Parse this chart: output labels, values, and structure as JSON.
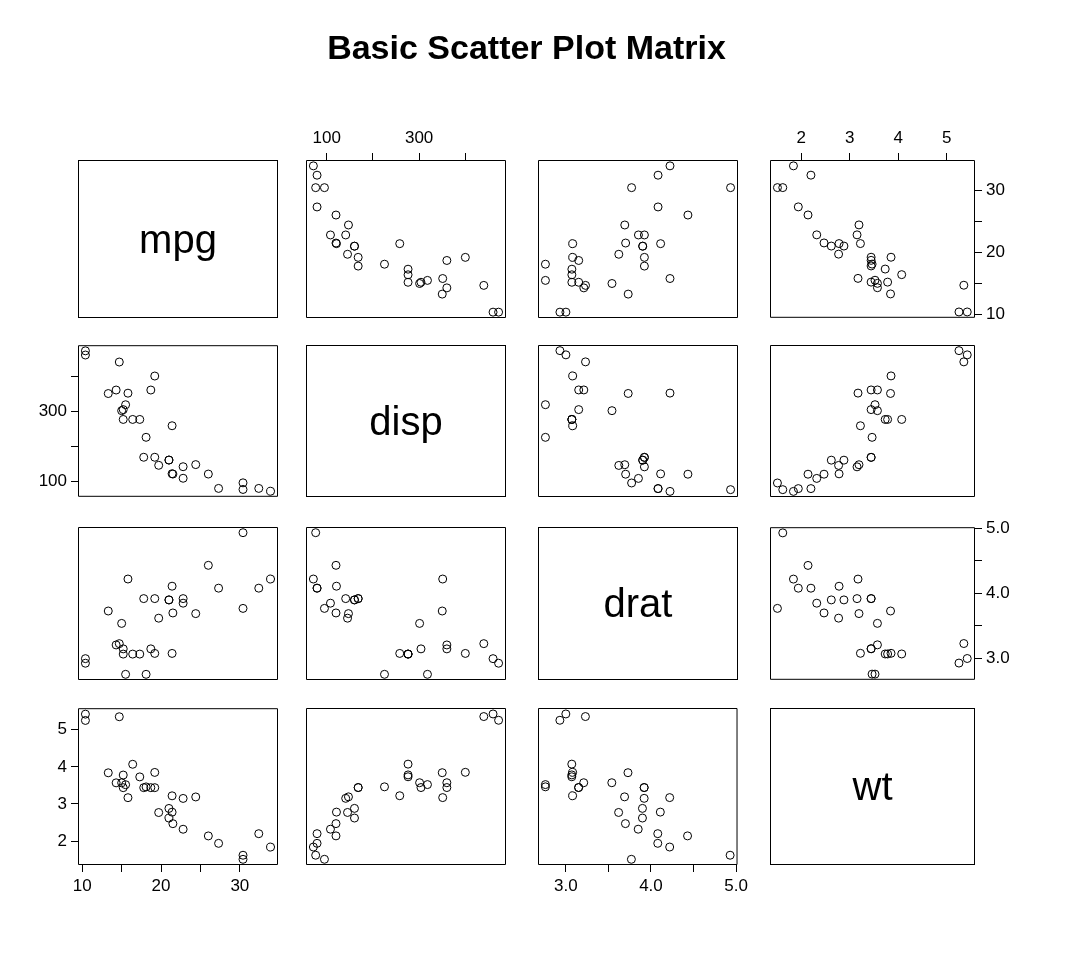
{
  "chart_data": [
    {
      "type": "other",
      "title": "Basic Scatter Plot Matrix",
      "annotations": [
        "mpg"
      ]
    },
    {
      "type": "scatter",
      "marker": "circle",
      "tick_labels": "x",
      "xlim": [
        55.06,
        488.04
      ],
      "xticks": [
        100,
        {
          "value": 200,
          "label": null
        },
        300,
        {
          "value": 400,
          "label": null
        }
      ],
      "ylim": [
        9.46,
        34.84
      ],
      "x": [
        160,
        160,
        108,
        258,
        360,
        225,
        360,
        147,
        141,
        168,
        168,
        276,
        276,
        276,
        472,
        460,
        440,
        79,
        76,
        71,
        120,
        318,
        304,
        350,
        400,
        79,
        120,
        95,
        351,
        145,
        301,
        121
      ],
      "series": [
        {
          "color": "#000000",
          "values": [
            21,
            21,
            22.8,
            21.4,
            18.7,
            18.1,
            14.3,
            24.4,
            22.8,
            19.2,
            17.8,
            16.4,
            17.3,
            15.2,
            10.4,
            10.4,
            14.7,
            32.4,
            30.4,
            33.9,
            21.5,
            15.5,
            15.2,
            13.3,
            19.2,
            27.3,
            26,
            30.4,
            15.8,
            19.7,
            15,
            21.4
          ]
        }
      ]
    },
    {
      "type": "scatter",
      "marker": "circle",
      "tick_labels": false,
      "xlim": [
        2.673,
        5.017
      ],
      "ylim": [
        9.46,
        34.84
      ],
      "x": [
        3.9,
        3.9,
        3.85,
        3.08,
        3.15,
        2.76,
        3.21,
        3.69,
        3.92,
        3.92,
        3.92,
        3.07,
        3.07,
        3.07,
        2.93,
        3,
        3.23,
        4.08,
        4.93,
        4.22,
        3.7,
        2.76,
        3.15,
        3.73,
        3.08,
        4.08,
        4.43,
        3.77,
        4.22,
        3.62,
        3.54,
        4.11
      ],
      "series": [
        {
          "color": "#000000",
          "values": [
            21,
            21,
            22.8,
            21.4,
            18.7,
            18.1,
            14.3,
            24.4,
            22.8,
            19.2,
            17.8,
            16.4,
            17.3,
            15.2,
            10.4,
            10.4,
            14.7,
            32.4,
            30.4,
            33.9,
            21.5,
            15.5,
            15.2,
            13.3,
            19.2,
            27.3,
            26,
            30.4,
            15.8,
            19.7,
            15,
            21.4
          ]
        }
      ]
    },
    {
      "type": "scatter",
      "marker": "circle",
      "xlim": [
        1.357,
        5.58
      ],
      "xticks": [
        2,
        3,
        4,
        5
      ],
      "ylim": [
        9.46,
        34.84
      ],
      "yticks": [
        10,
        {
          "value": 15,
          "label": null
        },
        20,
        {
          "value": 25,
          "label": null
        },
        30
      ],
      "x": [
        2.62,
        2.88,
        2.32,
        3.22,
        3.44,
        3.46,
        3.57,
        3.19,
        3.15,
        3.44,
        3.44,
        4.07,
        3.73,
        3.78,
        5.25,
        5.42,
        5.35,
        2.2,
        1.62,
        1.84,
        2.47,
        3.52,
        3.44,
        3.84,
        3.85,
        1.94,
        2.14,
        1.51,
        3.17,
        2.77,
        3.57,
        2.78
      ],
      "series": [
        {
          "color": "#000000",
          "values": [
            21,
            21,
            22.8,
            21.4,
            18.7,
            18.1,
            14.3,
            24.4,
            22.8,
            19.2,
            17.8,
            16.4,
            17.3,
            15.2,
            10.4,
            10.4,
            14.7,
            32.4,
            30.4,
            33.9,
            21.5,
            15.5,
            15.2,
            13.3,
            19.2,
            27.3,
            26,
            30.4,
            15.8,
            19.7,
            15,
            21.4
          ]
        }
      ]
    },
    {
      "type": "scatter",
      "marker": "circle",
      "tick_labels": "y",
      "xlim": [
        9.46,
        34.84
      ],
      "ylim": [
        55.06,
        488.04
      ],
      "yticks": [
        100,
        {
          "value": 200,
          "label": null
        },
        300,
        {
          "value": 400,
          "label": null
        }
      ],
      "x": [
        21,
        21,
        22.8,
        21.4,
        18.7,
        18.1,
        14.3,
        24.4,
        22.8,
        19.2,
        17.8,
        16.4,
        17.3,
        15.2,
        10.4,
        10.4,
        14.7,
        32.4,
        30.4,
        33.9,
        21.5,
        15.5,
        15.2,
        13.3,
        19.2,
        27.3,
        26,
        30.4,
        15.8,
        19.7,
        15,
        21.4
      ],
      "series": [
        {
          "color": "#000000",
          "values": [
            160,
            160,
            108,
            258,
            360,
            225,
            360,
            147,
            141,
            168,
            168,
            276,
            276,
            276,
            472,
            460,
            440,
            79,
            76,
            71,
            120,
            318,
            304,
            350,
            400,
            79,
            120,
            95,
            351,
            145,
            301,
            121
          ]
        }
      ]
    },
    {
      "type": "other",
      "annotations": [
        "disp"
      ]
    },
    {
      "type": "scatter",
      "marker": "circle",
      "tick_labels": false,
      "xlim": [
        2.673,
        5.017
      ],
      "ylim": [
        55.06,
        488.04
      ],
      "x": [
        3.9,
        3.9,
        3.85,
        3.08,
        3.15,
        2.76,
        3.21,
        3.69,
        3.92,
        3.92,
        3.92,
        3.07,
        3.07,
        3.07,
        2.93,
        3,
        3.23,
        4.08,
        4.93,
        4.22,
        3.7,
        2.76,
        3.15,
        3.73,
        3.08,
        4.08,
        4.43,
        3.77,
        4.22,
        3.62,
        3.54,
        4.11
      ],
      "series": [
        {
          "color": "#000000",
          "values": [
            160,
            160,
            108,
            258,
            360,
            225,
            360,
            147,
            141,
            168,
            168,
            276,
            276,
            276,
            472,
            460,
            440,
            79,
            76,
            71,
            120,
            318,
            304,
            350,
            400,
            79,
            120,
            95,
            351,
            145,
            301,
            121
          ]
        }
      ]
    },
    {
      "type": "scatter",
      "marker": "circle",
      "tick_labels": false,
      "xlim": [
        1.357,
        5.58
      ],
      "ylim": [
        55.06,
        488.04
      ],
      "x": [
        2.62,
        2.88,
        2.32,
        3.22,
        3.44,
        3.46,
        3.57,
        3.19,
        3.15,
        3.44,
        3.44,
        4.07,
        3.73,
        3.78,
        5.25,
        5.42,
        5.35,
        2.2,
        1.62,
        1.84,
        2.47,
        3.52,
        3.44,
        3.84,
        3.85,
        1.94,
        2.14,
        1.51,
        3.17,
        2.77,
        3.57,
        2.78
      ],
      "series": [
        {
          "color": "#000000",
          "values": [
            160,
            160,
            108,
            258,
            360,
            225,
            360,
            147,
            141,
            168,
            168,
            276,
            276,
            276,
            472,
            460,
            440,
            79,
            76,
            71,
            120,
            318,
            304,
            350,
            400,
            79,
            120,
            95,
            351,
            145,
            301,
            121
          ]
        }
      ]
    },
    {
      "type": "scatter",
      "marker": "circle",
      "tick_labels": false,
      "xlim": [
        9.46,
        34.84
      ],
      "ylim": [
        2.673,
        5.017
      ],
      "x": [
        21,
        21,
        22.8,
        21.4,
        18.7,
        18.1,
        14.3,
        24.4,
        22.8,
        19.2,
        17.8,
        16.4,
        17.3,
        15.2,
        10.4,
        10.4,
        14.7,
        32.4,
        30.4,
        33.9,
        21.5,
        15.5,
        15.2,
        13.3,
        19.2,
        27.3,
        26,
        30.4,
        15.8,
        19.7,
        15,
        21.4
      ],
      "series": [
        {
          "color": "#000000",
          "values": [
            3.9,
            3.9,
            3.85,
            3.08,
            3.15,
            2.76,
            3.21,
            3.69,
            3.92,
            3.92,
            3.92,
            3.07,
            3.07,
            3.07,
            2.93,
            3,
            3.23,
            4.08,
            4.93,
            4.22,
            3.7,
            2.76,
            3.15,
            3.73,
            3.08,
            4.08,
            4.43,
            3.77,
            4.22,
            3.62,
            3.54,
            4.11
          ]
        }
      ]
    },
    {
      "type": "scatter",
      "marker": "circle",
      "tick_labels": false,
      "xlim": [
        55.06,
        488.04
      ],
      "ylim": [
        2.673,
        5.017
      ],
      "x": [
        160,
        160,
        108,
        258,
        360,
        225,
        360,
        147,
        141,
        168,
        168,
        276,
        276,
        276,
        472,
        460,
        440,
        79,
        76,
        71,
        120,
        318,
        304,
        350,
        400,
        79,
        120,
        95,
        351,
        145,
        301,
        121
      ],
      "series": [
        {
          "color": "#000000",
          "values": [
            3.9,
            3.9,
            3.85,
            3.08,
            3.15,
            2.76,
            3.21,
            3.69,
            3.92,
            3.92,
            3.92,
            3.07,
            3.07,
            3.07,
            2.93,
            3,
            3.23,
            4.08,
            4.93,
            4.22,
            3.7,
            2.76,
            3.15,
            3.73,
            3.08,
            4.08,
            4.43,
            3.77,
            4.22,
            3.62,
            3.54,
            4.11
          ]
        }
      ]
    },
    {
      "type": "other",
      "annotations": [
        "drat"
      ]
    },
    {
      "type": "scatter",
      "marker": "circle",
      "tick_labels": "y",
      "xlim": [
        1.357,
        5.58
      ],
      "ylim": [
        2.673,
        5.017
      ],
      "yticks": [
        {
          "value": 3,
          "label": "3.0"
        },
        {
          "value": 3.5,
          "label": null
        },
        {
          "value": 4,
          "label": "4.0"
        },
        {
          "value": 4.5,
          "label": null
        },
        {
          "value": 5,
          "label": "5.0"
        }
      ],
      "x": [
        2.62,
        2.88,
        2.32,
        3.22,
        3.44,
        3.46,
        3.57,
        3.19,
        3.15,
        3.44,
        3.44,
        4.07,
        3.73,
        3.78,
        5.25,
        5.42,
        5.35,
        2.2,
        1.62,
        1.84,
        2.47,
        3.52,
        3.44,
        3.84,
        3.85,
        1.94,
        2.14,
        1.51,
        3.17,
        2.77,
        3.57,
        2.78
      ],
      "series": [
        {
          "color": "#000000",
          "values": [
            3.9,
            3.9,
            3.85,
            3.08,
            3.15,
            2.76,
            3.21,
            3.69,
            3.92,
            3.92,
            3.92,
            3.07,
            3.07,
            3.07,
            2.93,
            3,
            3.23,
            4.08,
            4.93,
            4.22,
            3.7,
            2.76,
            3.15,
            3.73,
            3.08,
            4.08,
            4.43,
            3.77,
            4.22,
            3.62,
            3.54,
            4.11
          ]
        }
      ]
    },
    {
      "type": "scatter",
      "marker": "circle",
      "xlim": [
        9.46,
        34.84
      ],
      "xticks": [
        10,
        {
          "value": 15,
          "label": null
        },
        20,
        {
          "value": 25,
          "label": null
        },
        30
      ],
      "ylim": [
        1.357,
        5.58
      ],
      "yticks": [
        2,
        3,
        4,
        5
      ],
      "x": [
        21,
        21,
        22.8,
        21.4,
        18.7,
        18.1,
        14.3,
        24.4,
        22.8,
        19.2,
        17.8,
        16.4,
        17.3,
        15.2,
        10.4,
        10.4,
        14.7,
        32.4,
        30.4,
        33.9,
        21.5,
        15.5,
        15.2,
        13.3,
        19.2,
        27.3,
        26,
        30.4,
        15.8,
        19.7,
        15,
        21.4
      ],
      "series": [
        {
          "color": "#000000",
          "values": [
            2.62,
            2.88,
            2.32,
            3.22,
            3.44,
            3.46,
            3.57,
            3.19,
            3.15,
            3.44,
            3.44,
            4.07,
            3.73,
            3.78,
            5.25,
            5.42,
            5.35,
            2.2,
            1.62,
            1.84,
            2.47,
            3.52,
            3.44,
            3.84,
            3.85,
            1.94,
            2.14,
            1.51,
            3.17,
            2.77,
            3.57,
            2.78
          ]
        }
      ]
    },
    {
      "type": "scatter",
      "marker": "circle",
      "tick_labels": false,
      "xlim": [
        55.06,
        488.04
      ],
      "ylim": [
        1.357,
        5.58
      ],
      "x": [
        160,
        160,
        108,
        258,
        360,
        225,
        360,
        147,
        141,
        168,
        168,
        276,
        276,
        276,
        472,
        460,
        440,
        79,
        76,
        71,
        120,
        318,
        304,
        350,
        400,
        79,
        120,
        95,
        351,
        145,
        301,
        121
      ],
      "series": [
        {
          "color": "#000000",
          "values": [
            2.62,
            2.88,
            2.32,
            3.22,
            3.44,
            3.46,
            3.57,
            3.19,
            3.15,
            3.44,
            3.44,
            4.07,
            3.73,
            3.78,
            5.25,
            5.42,
            5.35,
            2.2,
            1.62,
            1.84,
            2.47,
            3.52,
            3.44,
            3.84,
            3.85,
            1.94,
            2.14,
            1.51,
            3.17,
            2.77,
            3.57,
            2.78
          ]
        }
      ]
    },
    {
      "type": "scatter",
      "marker": "circle",
      "tick_labels": "x",
      "xlim": [
        2.673,
        5.017
      ],
      "xticks": [
        {
          "value": 3,
          "label": "3.0"
        },
        {
          "value": 3.5,
          "label": null
        },
        {
          "value": 4,
          "label": "4.0"
        },
        {
          "value": 4.5,
          "label": null
        },
        {
          "value": 5,
          "label": "5.0"
        }
      ],
      "ylim": [
        1.357,
        5.58
      ],
      "x": [
        3.9,
        3.9,
        3.85,
        3.08,
        3.15,
        2.76,
        3.21,
        3.69,
        3.92,
        3.92,
        3.92,
        3.07,
        3.07,
        3.07,
        2.93,
        3,
        3.23,
        4.08,
        4.93,
        4.22,
        3.7,
        2.76,
        3.15,
        3.73,
        3.08,
        4.08,
        4.43,
        3.77,
        4.22,
        3.62,
        3.54,
        4.11
      ],
      "series": [
        {
          "color": "#000000",
          "values": [
            2.62,
            2.88,
            2.32,
            3.22,
            3.44,
            3.46,
            3.57,
            3.19,
            3.15,
            3.44,
            3.44,
            4.07,
            3.73,
            3.78,
            5.25,
            5.42,
            5.35,
            2.2,
            1.62,
            1.84,
            2.47,
            3.52,
            3.44,
            3.84,
            3.85,
            1.94,
            2.14,
            1.51,
            3.17,
            2.77,
            3.57,
            2.78
          ]
        }
      ]
    },
    {
      "type": "other",
      "annotations": [
        "wt"
      ]
    }
  ]
}
